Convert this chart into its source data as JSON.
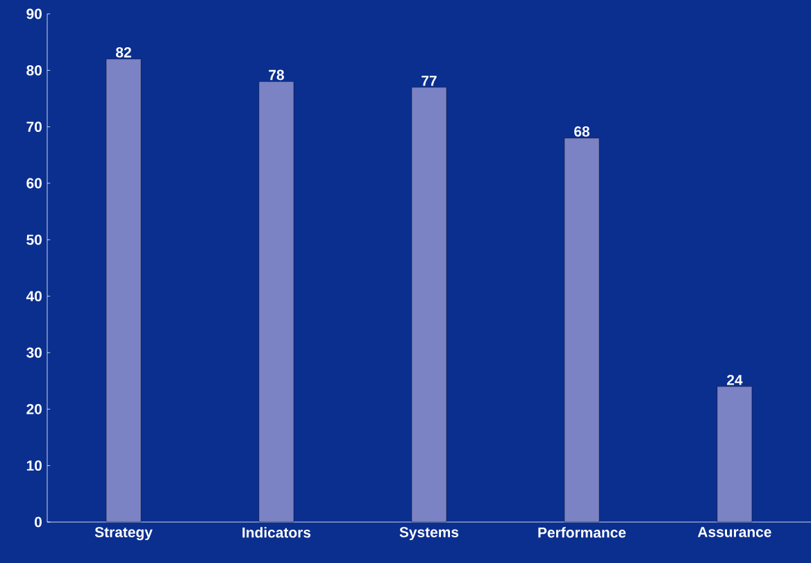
{
  "chart_data": {
    "type": "bar",
    "categories": [
      "Strategy",
      "Indicators",
      "Systems",
      "Performance",
      "Assurance"
    ],
    "values": [
      82,
      78,
      77,
      68,
      24
    ],
    "color": "#7b83c4",
    "ylim": [
      0,
      90
    ],
    "yticks": [
      0,
      10,
      20,
      30,
      40,
      50,
      60,
      70,
      80,
      90
    ],
    "data_labels": true,
    "grid": false
  }
}
